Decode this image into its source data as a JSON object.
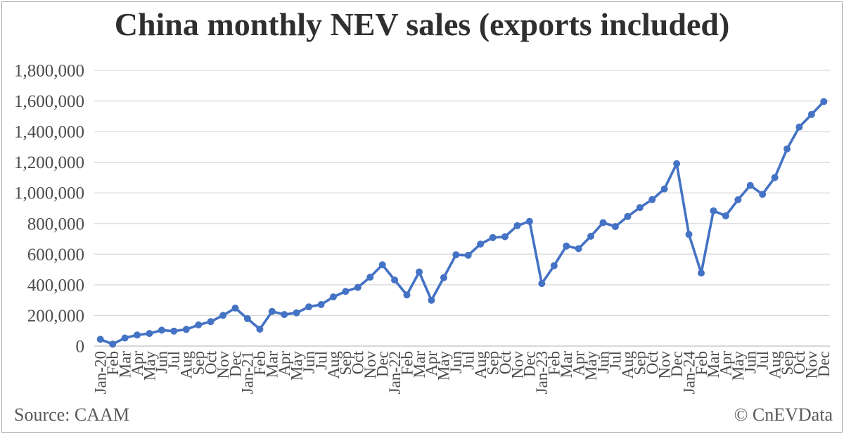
{
  "chart_data": {
    "type": "line",
    "title": "China monthly NEV sales (exports included)",
    "series_name": "China monthly NEV sales",
    "categories": [
      "Jan-20",
      "Feb",
      "Mar",
      "Apr",
      "May",
      "Jun",
      "Jul",
      "Aug",
      "Sep",
      "Oct",
      "Nov",
      "Dec",
      "Jan-21",
      "Feb",
      "Mar",
      "Apr",
      "May",
      "Jun",
      "Jul",
      "Aug",
      "Sep",
      "Oct",
      "Nov",
      "Dec",
      "Jan-22",
      "Feb",
      "Mar",
      "Apr",
      "May",
      "Jun",
      "Jul",
      "Aug",
      "Sep",
      "Oct",
      "Nov",
      "Dec",
      "Jan-23",
      "Feb",
      "Mar",
      "Apr",
      "May",
      "Jun",
      "Jul",
      "Aug",
      "Sep",
      "Oct",
      "Nov",
      "Dec",
      "Jan-24",
      "Feb",
      "Mar",
      "Apr",
      "May",
      "Jun",
      "Jul",
      "Aug",
      "Sep",
      "Oct",
      "Nov",
      "Dec"
    ],
    "values": [
      44000,
      12900,
      53000,
      72000,
      82000,
      104000,
      98000,
      109000,
      138000,
      160000,
      200000,
      248000,
      179000,
      110000,
      226000,
      206000,
      217000,
      256000,
      271000,
      321000,
      357000,
      383000,
      450000,
      531000,
      431000,
      334000,
      484000,
      299000,
      447000,
      596000,
      593000,
      666000,
      708000,
      714000,
      786000,
      814000,
      408000,
      525000,
      653000,
      636000,
      717000,
      806000,
      780000,
      846000,
      904000,
      956000,
      1026000,
      1191000,
      729000,
      477000,
      883000,
      850000,
      955000,
      1049000,
      991000,
      1100000,
      1287000,
      1430000,
      1512000,
      1596000
    ],
    "xlabel": "",
    "ylabel": "",
    "ylim": [
      0,
      1800000
    ],
    "ytick_interval": 200000,
    "x_tick_rotation": 90,
    "grid": true,
    "legend": "none",
    "line_color": "#4472C4",
    "marker": "circle",
    "gridline_color": "#d9d9d9",
    "axis_line_color": "#bfbfbf",
    "tick_label_color": "#4c4c4c",
    "title_color": "#2f2f2f"
  },
  "footer": {
    "source": "Source: CAAM",
    "copyright": "© CnEVData"
  }
}
